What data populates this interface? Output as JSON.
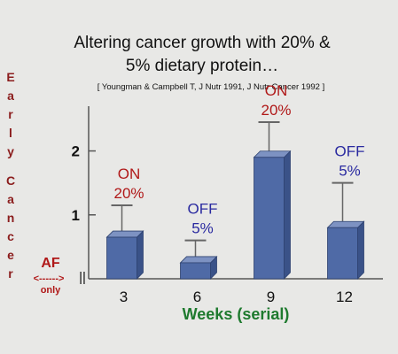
{
  "chart_data": {
    "type": "bar",
    "title_lines": [
      "Altering cancer growth with 20% &",
      "5% dietary protein…"
    ],
    "citation": "[ Youngman & Campbell T, J Nutr 1991, J Nutr Cancer 1992 ]",
    "ylabel_vertical": [
      "Early",
      "Cancer"
    ],
    "xlabel": "Weeks (serial)",
    "categories": [
      "3",
      "6",
      "9",
      "12"
    ],
    "values": [
      0.65,
      0.25,
      1.9,
      0.8
    ],
    "error_upper": [
      1.15,
      0.6,
      2.45,
      1.5
    ],
    "yticks": [
      "1",
      "2"
    ],
    "ytick_values": [
      1,
      2
    ],
    "ylim": [
      0,
      2.7
    ],
    "bar_color": "#4f6aa6",
    "annotations": [
      {
        "category": "3",
        "lines": [
          "ON",
          "20%"
        ],
        "color": "#b01818"
      },
      {
        "category": "6",
        "lines": [
          "OFF",
          "5%"
        ],
        "color": "#2a2aa0"
      },
      {
        "category": "9",
        "lines": [
          "ON",
          "20%"
        ],
        "color": "#b01818"
      },
      {
        "category": "12",
        "lines": [
          "OFF",
          "5%"
        ],
        "color": "#2a2aa0"
      }
    ],
    "af_marker": {
      "label": "AF",
      "arrow": "<------>",
      "sub": "only"
    },
    "axis_break": "||"
  }
}
